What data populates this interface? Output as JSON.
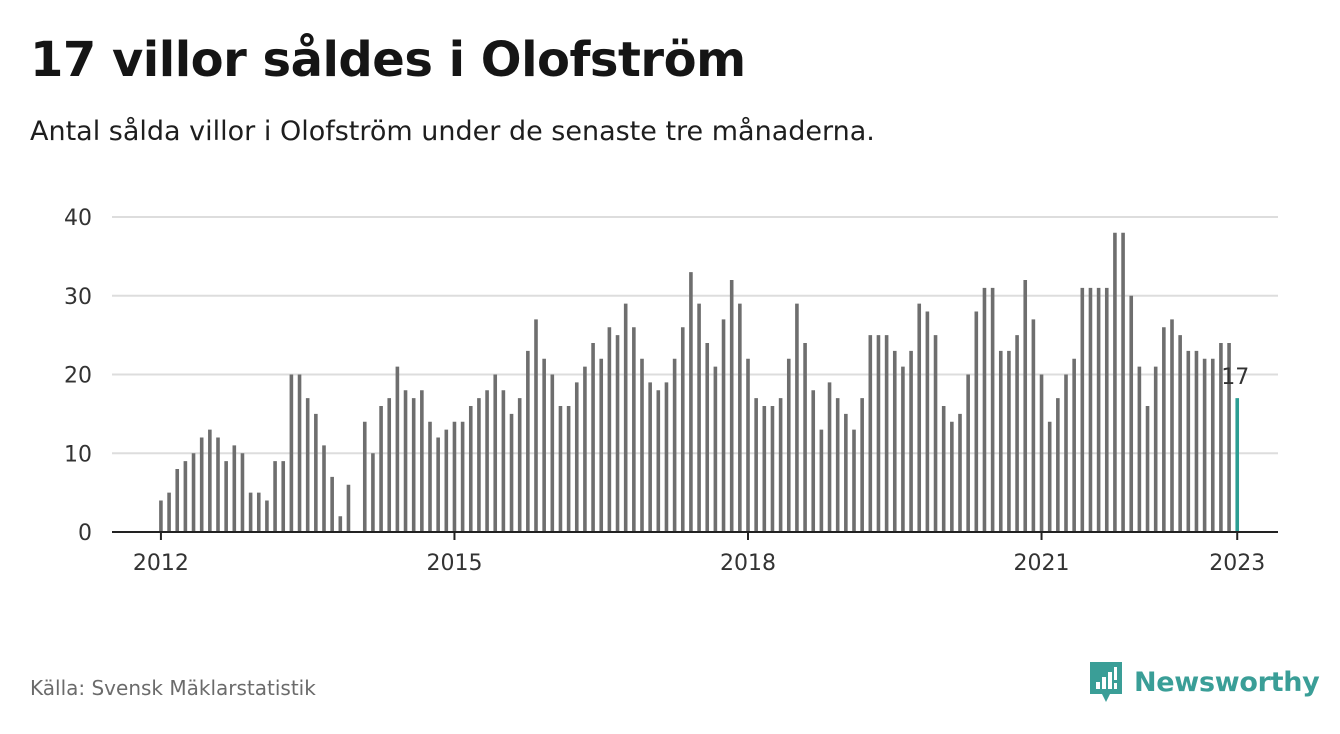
{
  "title": "17 villor såldes i Olofström",
  "subtitle": "Antal sålda villor i Olofström under de senaste tre månaderna.",
  "source": "Källa: Svensk Mäklarstatistik",
  "brand": {
    "name": "Newsworthy",
    "icon": "newsworthy-logo-icon"
  },
  "colors": {
    "bar": "#6e6e6e",
    "highlight": "#2b9e93",
    "grid": "#dddddd",
    "axis": "#222222",
    "brand": "#3a9e97"
  },
  "chart_data": {
    "type": "bar",
    "title": "17 villor såldes i Olofström",
    "xlabel": "",
    "ylabel": "",
    "ylim": [
      0,
      40
    ],
    "y_ticks": [
      "0",
      "10",
      "20",
      "30",
      "40"
    ],
    "x_ticks": [
      "2012",
      "2015",
      "2018",
      "2021",
      "2023"
    ],
    "x_range": [
      "2011-07",
      "2023-06"
    ],
    "grid": true,
    "legend": "none",
    "highlight_label": "17",
    "series": [
      {
        "start": "2012-01",
        "values": [
          4,
          5,
          8,
          9,
          10,
          12,
          13,
          12,
          9,
          11,
          10,
          5,
          5,
          4,
          9,
          9,
          20,
          20,
          17,
          15,
          11,
          7,
          2,
          6,
          0,
          14,
          10,
          16,
          17,
          21,
          18,
          17,
          18,
          14,
          12,
          13,
          14,
          14,
          16,
          17,
          18,
          20,
          18,
          15,
          17,
          23,
          27,
          22,
          20,
          16,
          16,
          19,
          21,
          24,
          22,
          26,
          25,
          29,
          26,
          22,
          19,
          18,
          19,
          22,
          26,
          33,
          29,
          24,
          21,
          27,
          32,
          29,
          22,
          17,
          16,
          16,
          17,
          22,
          29,
          24,
          18,
          13,
          19,
          17,
          15,
          13,
          17,
          25,
          25,
          25,
          23,
          21,
          23,
          29,
          28,
          25,
          16,
          14,
          15,
          20,
          28,
          31,
          31,
          23,
          23,
          25,
          32,
          27,
          20,
          14,
          17,
          20,
          22,
          31,
          31,
          31,
          31,
          38,
          38,
          30,
          21,
          16,
          21,
          26,
          27,
          25,
          23,
          23,
          22,
          22,
          24,
          24,
          17
        ]
      }
    ]
  }
}
